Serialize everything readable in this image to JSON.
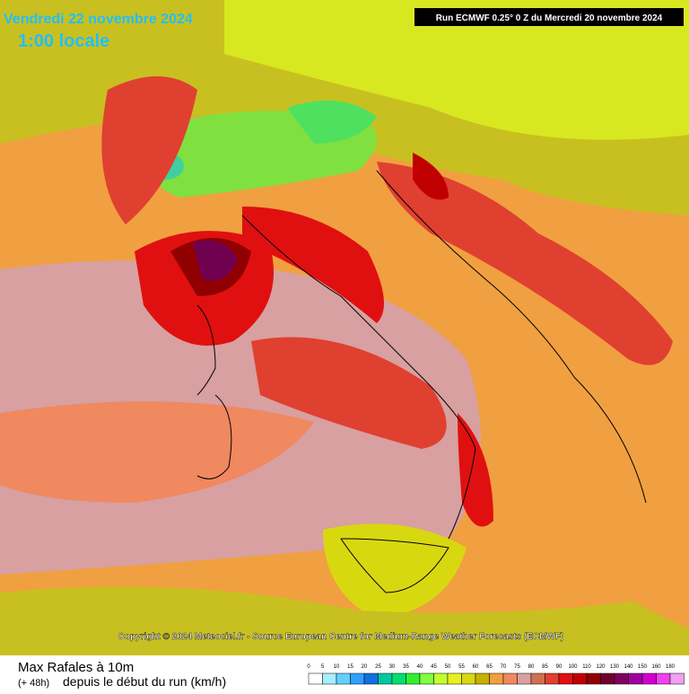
{
  "header": {
    "date": "Vendredi 22 novembre 2024",
    "time": "1:00 locale",
    "run": "Run ECMWF 0.25° 0 Z du Mercredi 20 novembre 2024"
  },
  "copyright": "Copyright © 2024 Meteociel.fr - Source European Centre for Medium-Range Weather Forecasts (ECMWF)",
  "legend": {
    "title": "Max Rafales à 10m",
    "prefix": "(+ 48h)",
    "subtitle": "depuis le début du run (km/h)",
    "scale": [
      {
        "value": 0,
        "color": "#ffffff"
      },
      {
        "value": 5,
        "color": "#a8eeff"
      },
      {
        "value": 10,
        "color": "#60d0ff"
      },
      {
        "value": 15,
        "color": "#30a0ff"
      },
      {
        "value": 20,
        "color": "#1070e0"
      },
      {
        "value": 25,
        "color": "#00c8a0"
      },
      {
        "value": 30,
        "color": "#00e070"
      },
      {
        "value": 35,
        "color": "#30f030"
      },
      {
        "value": 40,
        "color": "#80ff40"
      },
      {
        "value": 45,
        "color": "#c0ff30"
      },
      {
        "value": 50,
        "color": "#e8f020"
      },
      {
        "value": 55,
        "color": "#d8d810"
      },
      {
        "value": 60,
        "color": "#c8b000"
      },
      {
        "value": 65,
        "color": "#f0a040"
      },
      {
        "value": 70,
        "color": "#f08860"
      },
      {
        "value": 75,
        "color": "#d8a0a0"
      },
      {
        "value": 80,
        "color": "#d07050"
      },
      {
        "value": 85,
        "color": "#e04030"
      },
      {
        "value": 90,
        "color": "#e01010"
      },
      {
        "value": 100,
        "color": "#c00000"
      },
      {
        "value": 110,
        "color": "#900000"
      },
      {
        "value": 120,
        "color": "#700030"
      },
      {
        "value": 130,
        "color": "#800060"
      },
      {
        "value": 140,
        "color": "#a000a0"
      },
      {
        "value": 150,
        "color": "#d000d0"
      },
      {
        "value": 160,
        "color": "#f040f0"
      },
      {
        "value": 180,
        "color": "#f0a0f0"
      }
    ]
  }
}
